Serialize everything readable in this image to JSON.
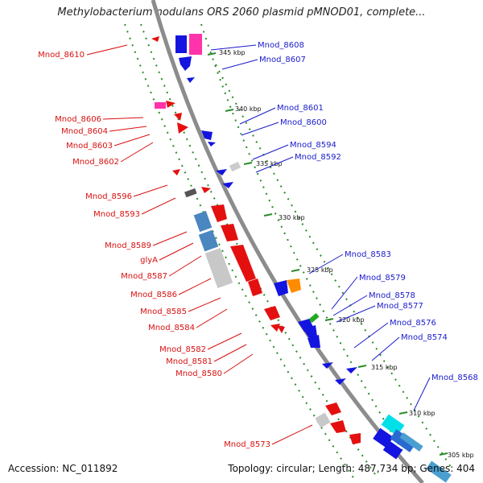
{
  "title": "Methylobacterium nodulans ORS 2060 plasmid pMNOD01, complete...",
  "accession_label": "Accession: NC_011892",
  "summary_label": "Topology: circular; Length: 487,734 bp; Genes: 404",
  "ticks": [
    "345 kbp",
    "340 kbp",
    "335 kbp",
    "330 kbp",
    "325 kbp",
    "320 kbp",
    "315 kbp",
    "310 kbp",
    "305 kbp"
  ],
  "left_labels": [
    "Mnod_8610",
    "Mnod_8606",
    "Mnod_8604",
    "Mnod_8603",
    "Mnod_8602",
    "Mnod_8596",
    "Mnod_8593",
    "Mnod_8589",
    "glyA",
    "Mnod_8587",
    "Mnod_8586",
    "Mnod_8585",
    "Mnod_8584",
    "Mnod_8582",
    "Mnod_8581",
    "Mnod_8580",
    "Mnod_8573"
  ],
  "right_labels": [
    "Mnod_8608",
    "Mnod_8607",
    "Mnod_8601",
    "Mnod_8600",
    "Mnod_8594",
    "Mnod_8592",
    "Mnod_8583",
    "Mnod_8579",
    "Mnod_8578",
    "Mnod_8577",
    "Mnod_8576",
    "Mnod_8574",
    "Mnod_8568"
  ],
  "colors": {
    "forward": "#e41010",
    "reverse": "#1414e0",
    "backbone": "#8c8c8c",
    "label_left": "#d81010",
    "label_right": "#1a1acc",
    "dotted": "#2a8a2a"
  }
}
